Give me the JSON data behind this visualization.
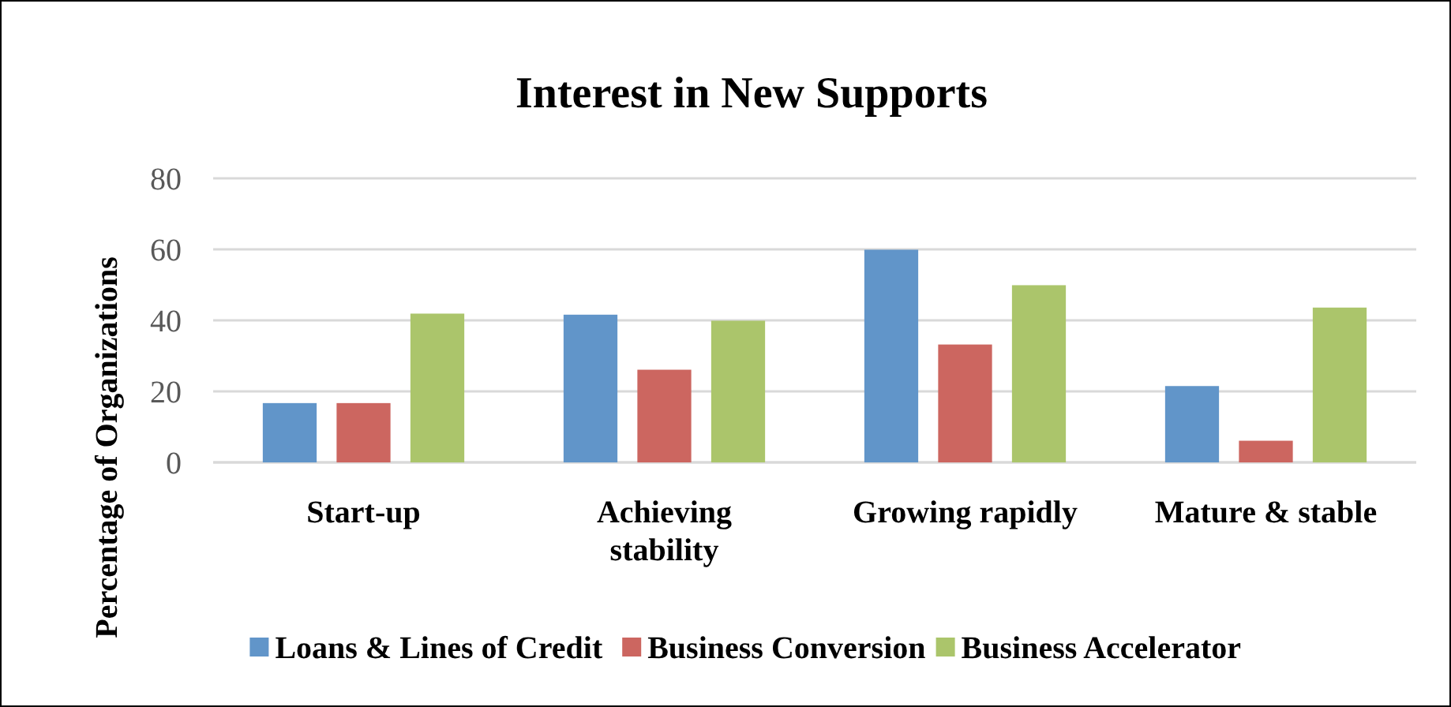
{
  "chart_data": {
    "type": "bar",
    "title": "Interest in New Supports",
    "ylabel": "Percentage of Organizations",
    "categories": [
      "Start-up",
      "Achieving stability",
      "Growing rapidly",
      "Mature & stable"
    ],
    "series": [
      {
        "name": "Loans & Lines of Credit",
        "color": "#6195c9",
        "values": [
          16.7,
          41.6,
          59.9,
          21.5
        ]
      },
      {
        "name": "Business Conversion",
        "color": "#cc6660",
        "values": [
          16.7,
          26.1,
          33.2,
          6.1
        ]
      },
      {
        "name": "Business Accelerator",
        "color": "#abc56b",
        "values": [
          41.9,
          39.9,
          49.9,
          43.6
        ]
      }
    ],
    "ylim": [
      0,
      80
    ],
    "yticks": [
      0,
      20,
      40,
      60,
      80
    ],
    "grid": "y",
    "legend": "bottom"
  }
}
